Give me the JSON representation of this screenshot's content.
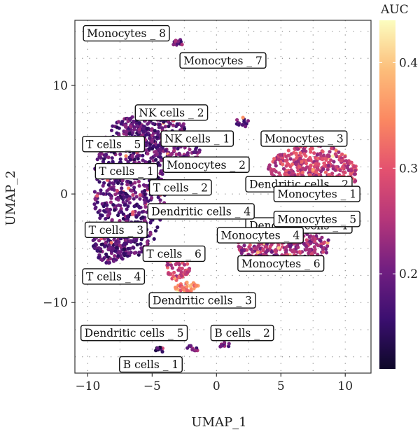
{
  "chart_data": {
    "type": "scatter",
    "xlabel": "UMAP_1",
    "ylabel": "UMAP_2",
    "xlim": [
      -11,
      12
    ],
    "ylim": [
      -16.5,
      16
    ],
    "xticks": [
      -10,
      -5,
      0,
      5,
      10
    ],
    "yticks": [
      -10,
      0,
      10
    ],
    "xtick_labels": [
      "−10",
      "−5",
      "0",
      "5",
      "10"
    ],
    "ytick_labels": [
      "−10",
      "0",
      "10"
    ],
    "grid": "dotted",
    "legend": {
      "title": "AUC",
      "position": "right",
      "min": 0.11,
      "max": 0.44,
      "ticks": [
        0.2,
        0.3,
        0.4
      ],
      "tick_labels": [
        "0.2",
        "0.3",
        "0.4"
      ],
      "colormap": [
        "#0d0829",
        "#3b0f70",
        "#721f81",
        "#b5367a",
        "#e3516f",
        "#fb8861",
        "#fcbd7a",
        "#fcfdbf"
      ]
    },
    "clusters": [
      {
        "label": "Monocytes _ 8",
        "x": -7.0,
        "y": 14.8
      },
      {
        "label": "Monocytes _ 7",
        "x": 0.5,
        "y": 12.3
      },
      {
        "label": "NK cells _ 2",
        "x": -3.5,
        "y": 7.5
      },
      {
        "label": "T cells _ 5",
        "x": -8.0,
        "y": 4.6
      },
      {
        "label": "NK cells _ 1",
        "x": -1.5,
        "y": 5.1
      },
      {
        "label": "Monocytes _ 3",
        "x": 6.8,
        "y": 5.1
      },
      {
        "label": "T cells _ 1",
        "x": -7.0,
        "y": 2.1
      },
      {
        "label": "Monocytes _ 2",
        "x": -0.8,
        "y": 2.7
      },
      {
        "label": "Dendritic cells _ 2",
        "x": 6.4,
        "y": 0.9
      },
      {
        "label": "T cells _ 2",
        "x": -2.8,
        "y": 0.6
      },
      {
        "label": "Monocytes _ 1",
        "x": 7.8,
        "y": 0.0
      },
      {
        "label": "Dendritic cells _ 1",
        "x": 6.4,
        "y": -2.9
      },
      {
        "label": "Dendritic cells _ 4",
        "x": -1.2,
        "y": -1.6
      },
      {
        "label": "Monocytes _ 5",
        "x": 7.8,
        "y": -2.3
      },
      {
        "label": "T cells _ 3",
        "x": -7.8,
        "y": -3.3
      },
      {
        "label": "Monocytes _ 4",
        "x": 3.4,
        "y": -3.8
      },
      {
        "label": "T cells _ 6",
        "x": -3.3,
        "y": -5.5
      },
      {
        "label": "Monocytes _ 6",
        "x": 5.0,
        "y": -6.4
      },
      {
        "label": "T cells _ 4",
        "x": -8.0,
        "y": -7.6
      },
      {
        "label": "Dendritic cells _ 3",
        "x": -1.1,
        "y": -9.8
      },
      {
        "label": "Dendritic cells _ 5",
        "x": -6.4,
        "y": -12.8
      },
      {
        "label": "B cells _ 2",
        "x": 2.0,
        "y": -12.8
      },
      {
        "label": "B cells _ 1",
        "x": -5.1,
        "y": -15.7
      }
    ],
    "point_groups": [
      {
        "cx": -6.8,
        "cy": 0.5,
        "rx": 2.8,
        "ry": 6.5,
        "n": 700,
        "auc": 0.18
      },
      {
        "cx": -8.2,
        "cy": -4.6,
        "rx": 1.4,
        "ry": 1.8,
        "n": 160,
        "auc": 0.18
      },
      {
        "cx": -4.8,
        "cy": 6.0,
        "rx": 2.4,
        "ry": 1.6,
        "n": 180,
        "auc": 0.19
      },
      {
        "cx": -3.0,
        "cy": 4.0,
        "rx": 1.8,
        "ry": 1.3,
        "n": 120,
        "auc": 0.2
      },
      {
        "cx": 7.5,
        "cy": 2.0,
        "rx": 3.5,
        "ry": 2.5,
        "n": 500,
        "auc": 0.27
      },
      {
        "cx": 5.2,
        "cy": -4.7,
        "rx": 3.6,
        "ry": 2.0,
        "n": 380,
        "auc": 0.24
      },
      {
        "cx": -3.0,
        "cy": -6.8,
        "rx": 0.9,
        "ry": 1.2,
        "n": 70,
        "auc": 0.27
      },
      {
        "cx": -2.2,
        "cy": -8.6,
        "rx": 1.0,
        "ry": 0.5,
        "n": 40,
        "auc": 0.34
      },
      {
        "cx": 2.0,
        "cy": 6.6,
        "rx": 0.5,
        "ry": 0.5,
        "n": 14,
        "auc": 0.2
      },
      {
        "cx": -3.0,
        "cy": 13.9,
        "rx": 0.6,
        "ry": 0.35,
        "n": 12,
        "auc": 0.2
      },
      {
        "cx": -4.5,
        "cy": -14.4,
        "rx": 0.4,
        "ry": 0.3,
        "n": 10,
        "auc": 0.15
      },
      {
        "cx": -1.8,
        "cy": -14.2,
        "rx": 0.5,
        "ry": 0.3,
        "n": 10,
        "auc": 0.2
      },
      {
        "cx": 0.6,
        "cy": -13.9,
        "rx": 0.5,
        "ry": 0.25,
        "n": 8,
        "auc": 0.2
      }
    ]
  }
}
